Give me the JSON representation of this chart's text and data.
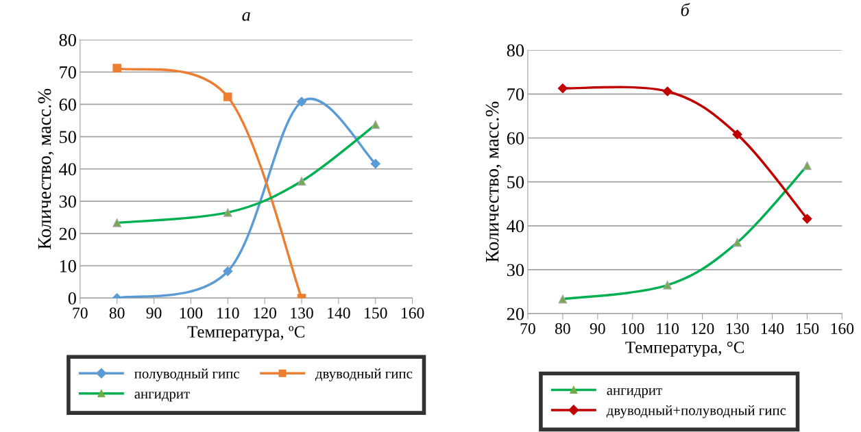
{
  "chart_data": [
    {
      "type": "line",
      "title": "а",
      "xlabel": "Температура, ºС",
      "ylabel": "Количество, масс.%",
      "x": [
        80,
        110,
        130,
        150
      ],
      "xlim": [
        70,
        160
      ],
      "xticks": [
        70,
        80,
        90,
        100,
        110,
        120,
        130,
        140,
        150,
        160
      ],
      "ylim": [
        0,
        80
      ],
      "yticks": [
        0,
        10,
        20,
        30,
        40,
        50,
        60,
        70,
        80
      ],
      "grid": "y",
      "legend": "bottom",
      "series": [
        {
          "name": "полуводный гипс",
          "color": "#5b9bd5",
          "marker": "diamond",
          "values": [
            0,
            8.3,
            60.8,
            41.6
          ]
        },
        {
          "name": "двуводный гипс",
          "color": "#ed7d31",
          "marker": "square",
          "x": [
            80,
            110,
            130
          ],
          "values": [
            71.2,
            62.3,
            0
          ]
        },
        {
          "name": "ангидрит",
          "color": "#00b050",
          "marker": "triangle",
          "values": [
            23.3,
            26.5,
            36.2,
            53.7
          ]
        }
      ]
    },
    {
      "type": "line",
      "title": "б",
      "xlabel": "Температура, °С",
      "ylabel": "Количество, масс.%",
      "x": [
        80,
        110,
        130,
        150
      ],
      "xlim": [
        70,
        160
      ],
      "xticks": [
        70,
        80,
        90,
        100,
        110,
        120,
        130,
        140,
        150,
        160
      ],
      "ylim": [
        20,
        80
      ],
      "yticks": [
        20,
        30,
        40,
        50,
        60,
        70,
        80
      ],
      "grid": "y",
      "legend": "bottom",
      "series": [
        {
          "name": "ангидрит",
          "color": "#00b050",
          "marker": "triangle",
          "values": [
            23.3,
            26.5,
            36.2,
            53.7
          ]
        },
        {
          "name": "двуводный+полуводный гипс",
          "color": "#c00000",
          "marker": "diamond",
          "values": [
            71.3,
            70.6,
            60.8,
            41.6
          ]
        }
      ]
    }
  ]
}
